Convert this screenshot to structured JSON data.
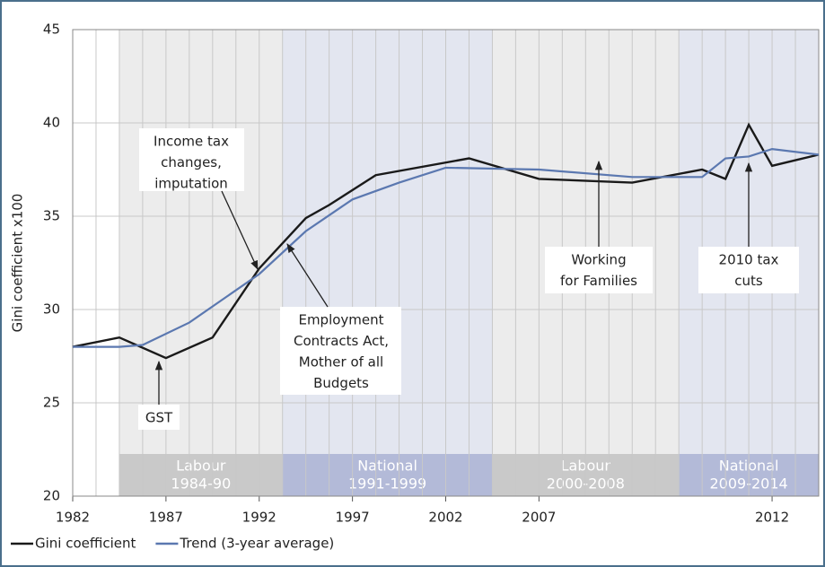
{
  "chart_data": {
    "type": "line",
    "ylabel": "Gini coefficient x100",
    "xlim": [
      0,
      32
    ],
    "xticks": [
      {
        "value": 0,
        "label": "1982"
      },
      {
        "value": 4,
        "label": "1987"
      },
      {
        "value": 8,
        "label": "1992"
      },
      {
        "value": 12,
        "label": "1997"
      },
      {
        "value": 16,
        "label": "2002"
      },
      {
        "value": 20,
        "label": "2007"
      },
      {
        "value": 30,
        "label": "2012"
      }
    ],
    "ylim": [
      20,
      45
    ],
    "yticks": [
      20,
      25,
      30,
      35,
      40,
      45
    ],
    "grid": true,
    "series": [
      {
        "name": "Gini coefficient",
        "color": "#1a1a1a",
        "x": [
          0,
          2,
          4,
          6,
          8,
          10,
          11,
          13,
          17,
          20,
          24,
          27,
          28,
          29,
          30,
          32
        ],
        "values": [
          28.0,
          28.5,
          27.4,
          28.5,
          32.2,
          34.9,
          35.6,
          37.2,
          38.1,
          37.0,
          36.8,
          37.5,
          37.0,
          39.9,
          37.7,
          38.3
        ]
      },
      {
        "name": "Trend (3-year average)",
        "color": "#5b78b0",
        "x": [
          0,
          2,
          3,
          5,
          8,
          10,
          12,
          14,
          16,
          20,
          24,
          27,
          28,
          29,
          30,
          32
        ],
        "values": [
          28.0,
          28.0,
          28.1,
          29.3,
          31.9,
          34.2,
          35.9,
          36.8,
          37.6,
          37.5,
          37.1,
          37.1,
          38.1,
          38.2,
          38.6,
          38.3
        ]
      }
    ],
    "periods": [
      {
        "party": "Labour",
        "years": "1984-90",
        "start": 2,
        "end": 9,
        "color": "#c9c9c9",
        "tint": "#ececec"
      },
      {
        "party": "National",
        "years": "1991-1999",
        "start": 9,
        "end": 18,
        "color": "#b3bad8",
        "tint": "#e3e6f0"
      },
      {
        "party": "Labour",
        "years": "2000-2008",
        "start": 18,
        "end": 26,
        "color": "#c9c9c9",
        "tint": "#ececec"
      },
      {
        "party": "National",
        "years": "2009-2014",
        "start": 26,
        "end": 32,
        "color": "#b3bad8",
        "tint": "#e3e6f0"
      }
    ],
    "annotations": [
      {
        "text": [
          "Income tax",
          "changes,",
          "imputation"
        ]
      },
      {
        "text": [
          "Employment",
          "Contracts Act,",
          "Mother of all",
          "Budgets"
        ]
      },
      {
        "text": [
          "Working",
          "for Families"
        ]
      },
      {
        "text": [
          "2010 tax",
          "cuts"
        ]
      },
      {
        "text": [
          "GST"
        ]
      }
    ]
  }
}
